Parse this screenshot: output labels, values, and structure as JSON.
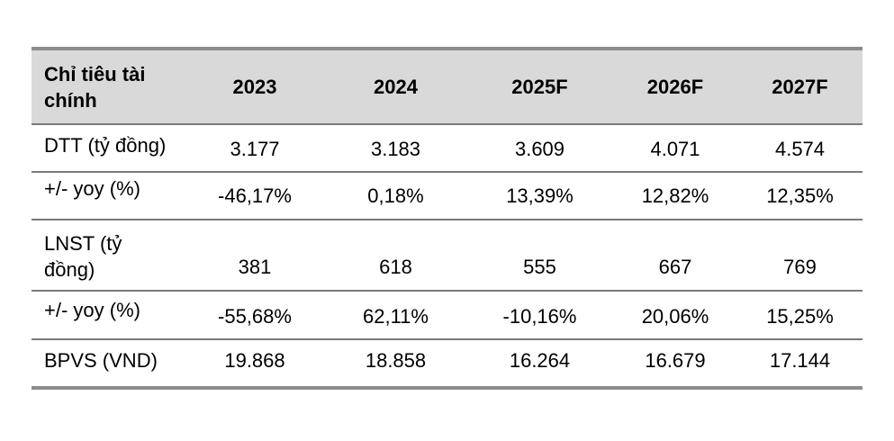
{
  "table": {
    "headers": [
      "Chỉ tiêu tài chính",
      "2023",
      "2024",
      "2025F",
      "2026F",
      "2027F"
    ],
    "header_label_line1": "Chỉ tiêu tài",
    "header_label_line2": "chính",
    "rows": [
      {
        "label": "DTT (tỷ đồng)",
        "values": [
          "3.177",
          "3.183",
          "3.609",
          "4.071",
          "4.574"
        ]
      },
      {
        "label": "+/- yoy (%)",
        "values": [
          "-46,17%",
          "0,18%",
          "13,39%",
          "12,82%",
          "12,35%"
        ]
      },
      {
        "label_line1": "LNST (tỷ",
        "label_line2": "đồng)",
        "values": [
          "381",
          "618",
          "555",
          "667",
          "769"
        ]
      },
      {
        "label": "+/- yoy (%)",
        "values": [
          "-55,68%",
          "62,11%",
          "-10,16%",
          "20,06%",
          "15,25%"
        ]
      },
      {
        "label": "BPVS (VND)",
        "values": [
          "19.868",
          "18.858",
          "16.264",
          "16.679",
          "17.144"
        ]
      }
    ]
  },
  "colors": {
    "header_background": "#d9d9d9",
    "border": "#8c8c8c",
    "text": "#000000"
  }
}
